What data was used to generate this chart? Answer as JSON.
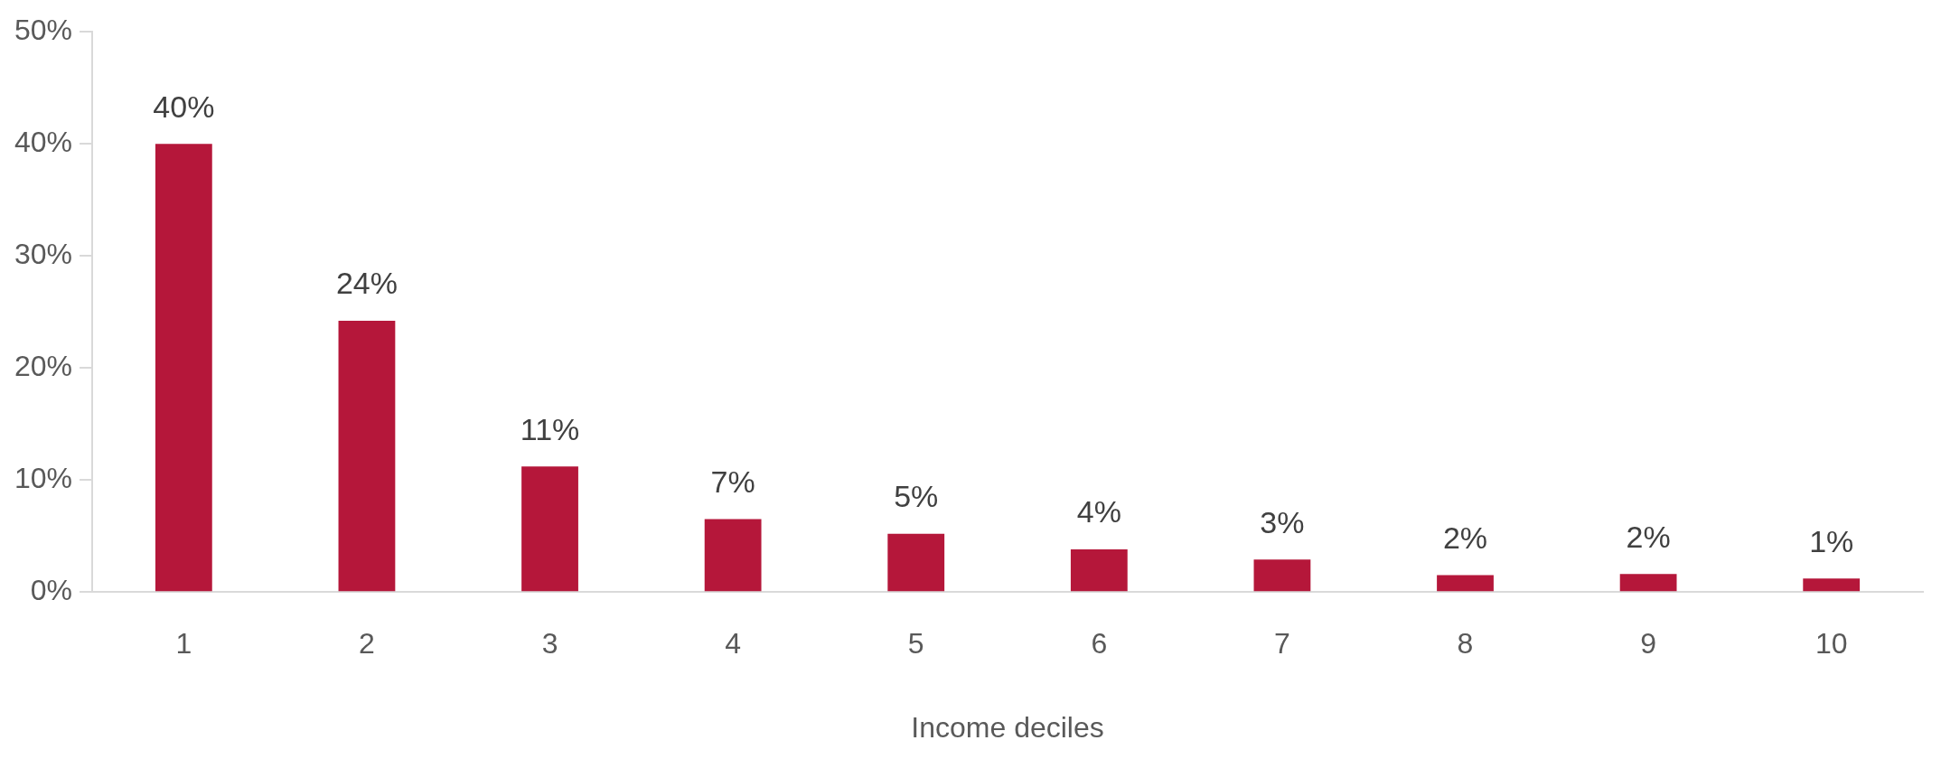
{
  "chart_data": {
    "type": "bar",
    "xlabel": "Income deciles",
    "categories": [
      "1",
      "2",
      "3",
      "4",
      "5",
      "6",
      "7",
      "8",
      "9",
      "10"
    ],
    "values": [
      40,
      24.2,
      11.2,
      6.5,
      5.2,
      3.8,
      2.9,
      1.5,
      1.6,
      1.2
    ],
    "value_labels": [
      "40%",
      "24%",
      "11%",
      "7%",
      "5%",
      "4%",
      "3%",
      "2%",
      "2%",
      "1%"
    ],
    "color": "#b5173a",
    "ylim": [
      0,
      50
    ],
    "yticks": [
      {
        "value": 0,
        "label": "0%"
      },
      {
        "value": 10,
        "label": "10%"
      },
      {
        "value": 20,
        "label": "20%"
      },
      {
        "value": 30,
        "label": "30%"
      },
      {
        "value": 40,
        "label": "40%"
      },
      {
        "value": 50,
        "label": "50%"
      }
    ],
    "grid": false,
    "legend": false
  }
}
